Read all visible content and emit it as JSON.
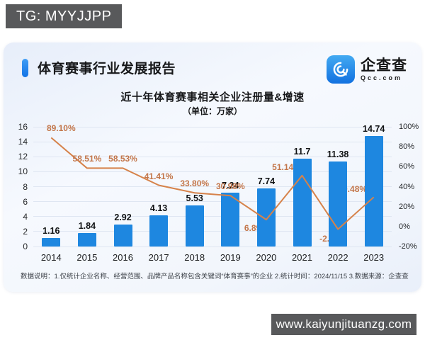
{
  "header": {
    "badge": "TG: MYYJJPP",
    "report_title": "体育赛事行业发展报告",
    "logo": {
      "name": "企查查",
      "domain": "Qcc.com"
    }
  },
  "chart_data": {
    "type": "bar",
    "title": "近十年体育赛事相关企业注册量&增速",
    "subtitle": "（单位：万家）",
    "categories": [
      "2014",
      "2015",
      "2016",
      "2017",
      "2018",
      "2019",
      "2020",
      "2021",
      "2022",
      "2023"
    ],
    "series": [
      {
        "name": "注册量",
        "type": "bar",
        "values": [
          1.16,
          1.84,
          2.92,
          4.13,
          5.53,
          7.24,
          7.74,
          11.7,
          11.38,
          14.74
        ],
        "labels": [
          "1.16",
          "1.84",
          "2.92",
          "4.13",
          "5.53",
          "7.24",
          "7.74",
          "11.7",
          "11.38",
          "14.74"
        ]
      },
      {
        "name": "增速",
        "type": "line",
        "values": [
          89.1,
          58.51,
          58.53,
          41.41,
          33.8,
          30.98,
          6.89,
          51.14,
          -2.68,
          29.48
        ],
        "labels": [
          "89.10%",
          "58.51%",
          "58.53%",
          "41.41%",
          "33.80%",
          "30.98%",
          "6.89%",
          "51.14%",
          "-2.68%",
          "29.48%"
        ]
      }
    ],
    "left_axis": {
      "min": 0,
      "max": 16,
      "tick_values": [
        0,
        2,
        4,
        6,
        8,
        10,
        12,
        14,
        16
      ],
      "tick_labels": [
        "0",
        "2",
        "4",
        "6",
        "8",
        "10",
        "12",
        "14",
        "16"
      ]
    },
    "right_axis": {
      "min": -20,
      "max": 100,
      "tick_values": [
        100,
        80,
        60,
        40,
        20,
        0,
        -20
      ],
      "tick_labels": [
        "100%",
        "80%",
        "60%",
        "40%",
        "20%",
        "0%",
        "-20%"
      ]
    },
    "colors": {
      "bar": "#1e87e0",
      "line": "#d6824a",
      "line_label": "#c3764a"
    },
    "grid": true,
    "legend": "none"
  },
  "footer": {
    "note": "数据说明：1.仅统计企业名称、经营范围、品牌产品名称包含关键词“体育赛事”的企业  2.统计时间：2024/11/15  3.数据来源：企查查",
    "watermark": "www.kaiyunjituanzg.com"
  }
}
